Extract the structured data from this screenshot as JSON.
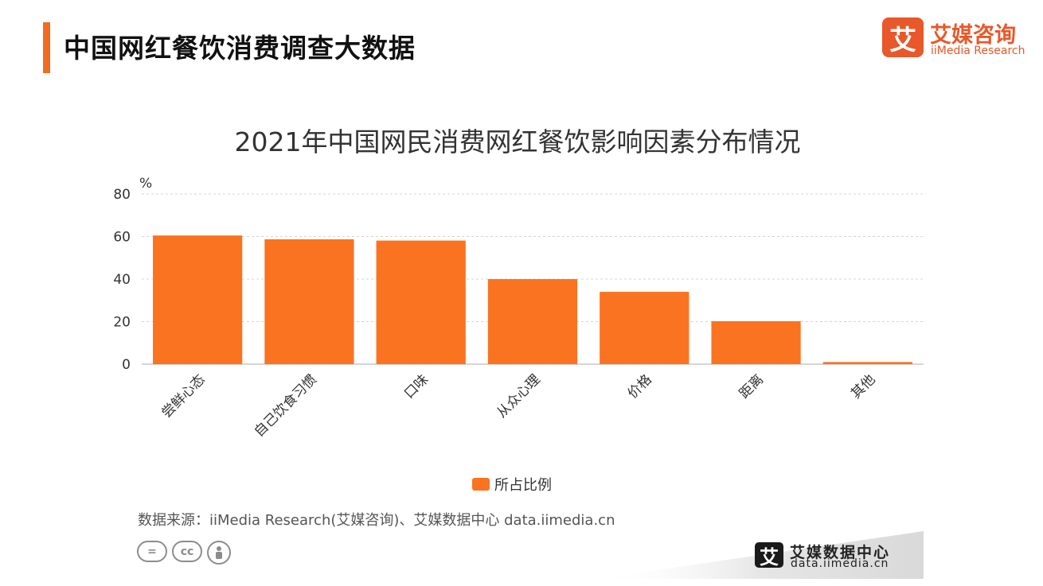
{
  "page": {
    "title": "中国网红餐饮消费调查大数据",
    "accent_color": "#F26B21"
  },
  "logo": {
    "mark": "艾",
    "name_cn": "艾媒咨询",
    "name_en": "iiMedia Research",
    "color": "#E8582A"
  },
  "chart_data": {
    "type": "bar",
    "title": "2021年中国网民消费网红餐饮影响因素分布情况",
    "ylabel": "%",
    "xlabel": "",
    "ylim": [
      0,
      80
    ],
    "yticks": [
      0,
      20,
      40,
      60,
      80
    ],
    "grid": true,
    "legend_position": "bottom",
    "categories": [
      "尝鲜心态",
      "自己饮食习惯",
      "口味",
      "从众心理",
      "价格",
      "距离",
      "其他"
    ],
    "series": [
      {
        "name": "所占比例",
        "color": "#FA7320",
        "values": [
          60.5,
          58.7,
          58.1,
          40.0,
          34.0,
          20.2,
          1.0
        ]
      }
    ]
  },
  "source": {
    "text": "数据来源：iiMedia Research(艾媒咨询)、艾媒数据中心 data.iimedia.cn"
  },
  "license_icons": [
    "=",
    "cc",
    "person-icon"
  ],
  "footer": {
    "mark": "艾",
    "name_cn": "艾媒数据中心",
    "url": "data.iimedia.cn"
  }
}
